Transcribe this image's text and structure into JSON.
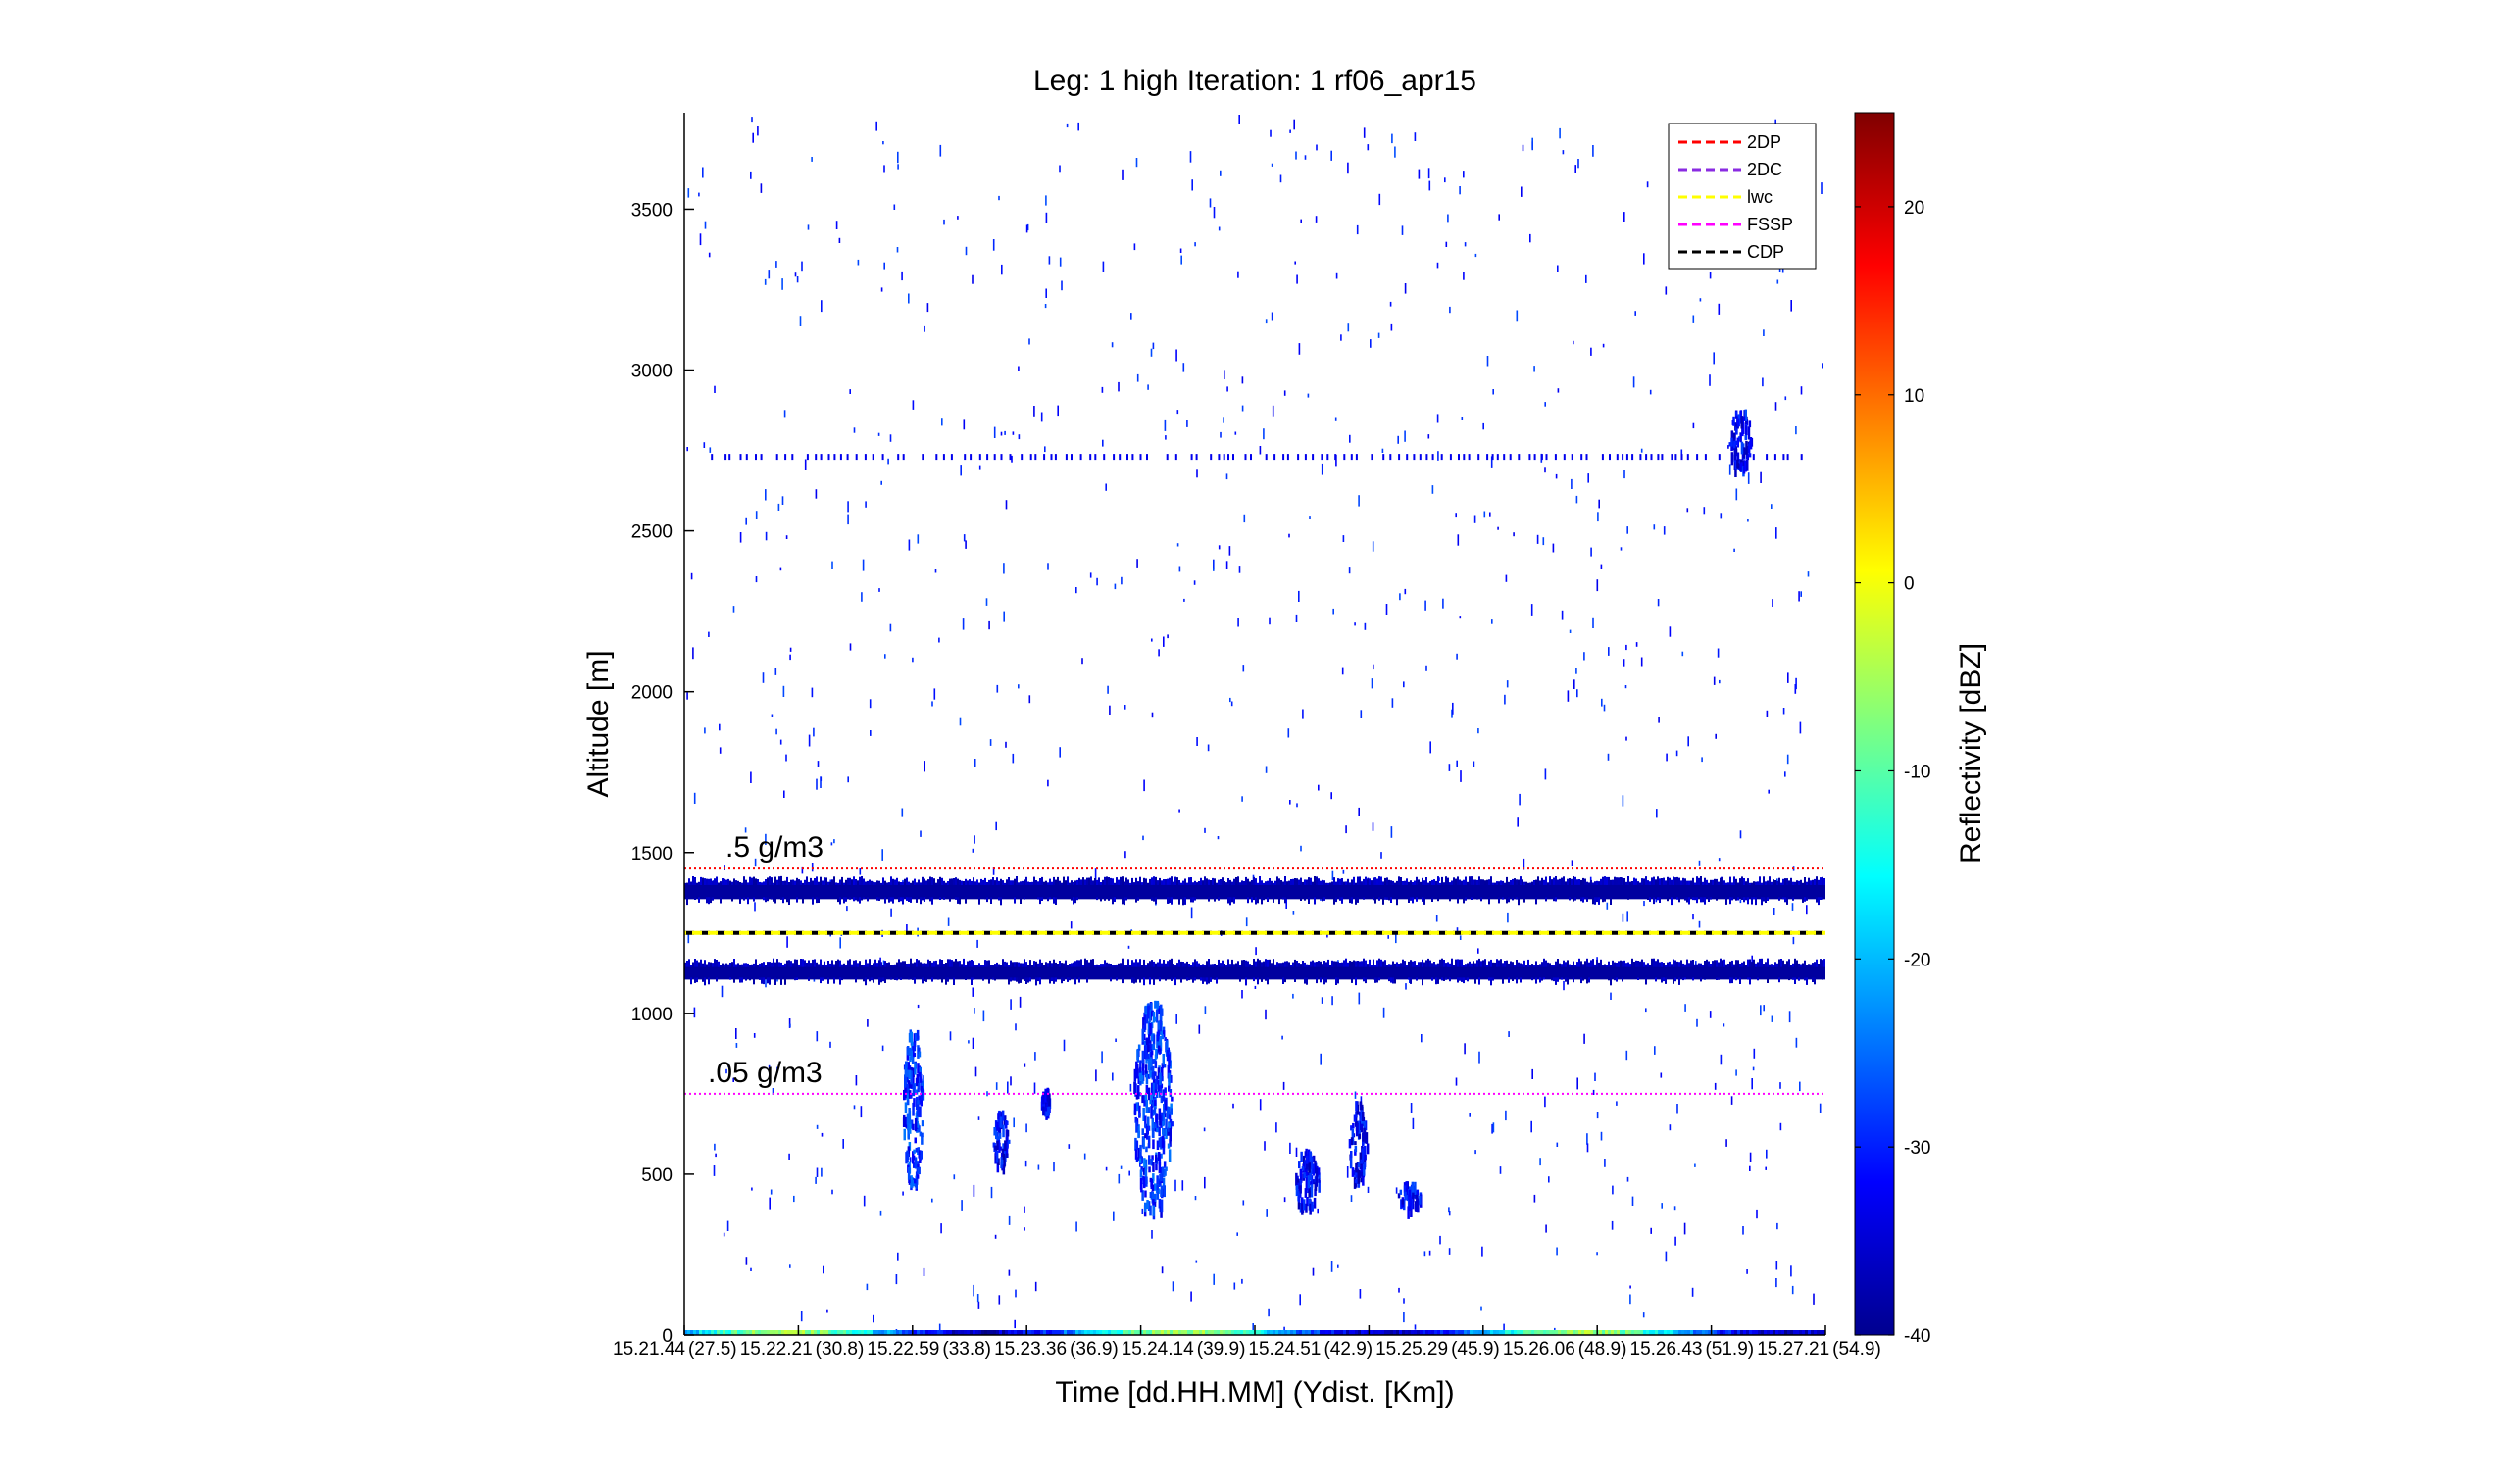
{
  "chart_data": {
    "type": "heatmap",
    "title": "Leg: 1 high Iteration: 1  rf06_apr15",
    "xlabel": "Time [dd.HH.MM]     (Ydist. [Km])",
    "ylabel": "Altitude [m]",
    "ylim": [
      0,
      3800
    ],
    "yticks": [
      0,
      500,
      1000,
      1500,
      2000,
      2500,
      3000,
      3500
    ],
    "x_tick_labels": [
      "15.21.44",
      "(27.5)",
      "15.22.21",
      "(30.8)",
      "15.22.59",
      "(33.8)",
      "15.23.36",
      "(36.9)",
      "15.24.14",
      "(39.9)",
      "15.24.51",
      "(42.9)",
      "15.25.29",
      "(45.9)",
      "15.26.06",
      "(48.9)",
      "15.26.43",
      "(51.9)",
      "15.27.21",
      "(54.9)"
    ],
    "colorbar": {
      "label": "Reflectivity [dBZ]",
      "range": [
        -40,
        25
      ],
      "ticks": [
        -40,
        -30,
        -20,
        -10,
        0,
        10,
        20
      ],
      "colormap": "jet"
    },
    "legend": {
      "position": "top-right",
      "entries": [
        {
          "name": "2DP",
          "color": "#ff0000"
        },
        {
          "name": "2DC",
          "color": "#8a2be2"
        },
        {
          "name": "lwc",
          "color": "#ffff00"
        },
        {
          "name": "FSSP",
          "color": "#ff00ff"
        },
        {
          "name": "CDP",
          "color": "#000000"
        }
      ]
    },
    "reference_lines": [
      {
        "label": ".5 g/m3",
        "altitude": 1450,
        "color": "#ff0000",
        "style": "dotted"
      },
      {
        "label": ".05 g/m3",
        "altitude": 750,
        "color": "#ff00ff",
        "style": "dotted"
      },
      {
        "label": "",
        "altitude": 1250,
        "color": "#000000",
        "style": "dashed"
      },
      {
        "label": "",
        "altitude": 1250,
        "color": "#ffff00",
        "style": "dashed"
      }
    ],
    "bands": [
      {
        "altitude_low": 1355,
        "altitude_high": 1405,
        "dbz": -38
      },
      {
        "altitude_low": 1105,
        "altitude_high": 1150,
        "dbz": -38
      }
    ],
    "echo_layer_altitude": 2730,
    "cloud_patches": [
      {
        "x": 0.2,
        "width": 0.018,
        "alt_low": 480,
        "alt_high": 950,
        "dbz": -30
      },
      {
        "x": 0.277,
        "width": 0.014,
        "alt_low": 530,
        "alt_high": 700,
        "dbz": -33
      },
      {
        "x": 0.316,
        "width": 0.008,
        "alt_low": 700,
        "alt_high": 770,
        "dbz": -33
      },
      {
        "x": 0.41,
        "width": 0.035,
        "alt_low": 400,
        "alt_high": 1040,
        "dbz": -30
      },
      {
        "x": 0.545,
        "width": 0.022,
        "alt_low": 400,
        "alt_high": 580,
        "dbz": -33
      },
      {
        "x": 0.59,
        "width": 0.016,
        "alt_low": 480,
        "alt_high": 730,
        "dbz": -33
      },
      {
        "x": 0.635,
        "width": 0.02,
        "alt_low": 400,
        "alt_high": 480,
        "dbz": -33
      },
      {
        "x": 0.925,
        "width": 0.02,
        "alt_low": 2700,
        "alt_high": 2880,
        "dbz": -33
      }
    ]
  }
}
